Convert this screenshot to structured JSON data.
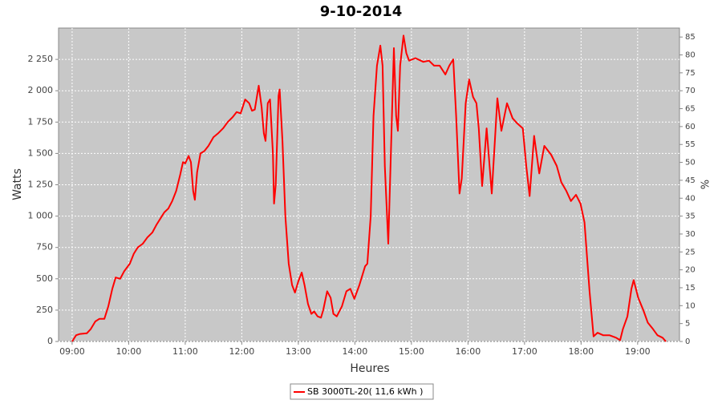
{
  "chart_data": {
    "type": "line",
    "title": "9-10-2014",
    "x_label": "Heures",
    "y_label": "Watts",
    "y2_label": "%",
    "xlim": [
      8.76,
      19.74
    ],
    "xticks": [
      {
        "value": 9,
        "label": "09:00"
      },
      {
        "value": 10,
        "label": "10:00"
      },
      {
        "value": 11,
        "label": "11:00"
      },
      {
        "value": 12,
        "label": "12:00"
      },
      {
        "value": 13,
        "label": "13:00"
      },
      {
        "value": 14,
        "label": "14:00"
      },
      {
        "value": 15,
        "label": "15:00"
      },
      {
        "value": 16,
        "label": "16:00"
      },
      {
        "value": 17,
        "label": "17:00"
      },
      {
        "value": 18,
        "label": "18:00"
      },
      {
        "value": 19,
        "label": "19:00"
      }
    ],
    "ylim": [
      0,
      2500
    ],
    "yticks": [
      0,
      250,
      500,
      750,
      {
        "value": 1000,
        "label": "1 000"
      },
      {
        "value": 1250,
        "label": "1 250"
      },
      {
        "value": 1500,
        "label": "1 500"
      },
      {
        "value": 1750,
        "label": "1 750"
      },
      {
        "value": 2000,
        "label": "2 000"
      },
      {
        "value": 2250,
        "label": "2 250"
      }
    ],
    "y2lim": [
      0,
      87.5
    ],
    "y2ticks": [
      0,
      5,
      10,
      15,
      20,
      25,
      30,
      35,
      40,
      45,
      50,
      55,
      60,
      65,
      70,
      75,
      80,
      85
    ],
    "grid": true,
    "legend": "bottom",
    "x": [
      9.0,
      9.07,
      9.14,
      9.26,
      9.33,
      9.41,
      9.48,
      9.57,
      9.64,
      9.71,
      9.77,
      9.85,
      9.92,
      10.02,
      10.09,
      10.16,
      10.25,
      10.33,
      10.42,
      10.49,
      10.56,
      10.63,
      10.7,
      10.77,
      10.84,
      10.91,
      10.96,
      11.0,
      11.06,
      11.1,
      11.14,
      11.17,
      11.21,
      11.27,
      11.34,
      11.41,
      11.5,
      11.58,
      11.67,
      11.75,
      11.84,
      11.91,
      11.98,
      12.06,
      12.13,
      12.18,
      12.23,
      12.3,
      12.35,
      12.39,
      12.42,
      12.46,
      12.5,
      12.55,
      12.57,
      12.6,
      12.65,
      12.67,
      12.72,
      12.77,
      12.83,
      12.89,
      12.94,
      13.0,
      13.06,
      13.11,
      13.17,
      13.23,
      13.28,
      13.34,
      13.4,
      13.44,
      13.51,
      13.57,
      13.62,
      13.68,
      13.77,
      13.85,
      13.92,
      13.99,
      14.08,
      14.18,
      14.22,
      14.28,
      14.33,
      14.39,
      14.45,
      14.49,
      14.53,
      14.59,
      14.63,
      14.69,
      14.73,
      14.76,
      14.8,
      14.86,
      14.91,
      14.96,
      15.07,
      15.21,
      15.31,
      15.4,
      15.5,
      15.6,
      15.67,
      15.74,
      15.79,
      15.85,
      15.89,
      15.96,
      16.02,
      16.09,
      16.15,
      16.19,
      16.25,
      16.33,
      16.42,
      16.52,
      16.59,
      16.69,
      16.79,
      16.87,
      16.97,
      17.03,
      17.09,
      17.17,
      17.26,
      17.35,
      17.47,
      17.57,
      17.65,
      17.74,
      17.82,
      17.91,
      17.99,
      18.06,
      18.15,
      18.22,
      18.29,
      18.39,
      18.5,
      18.62,
      18.69,
      18.74,
      18.82,
      18.89,
      18.93,
      19.01,
      19.1,
      19.18,
      19.27,
      19.35,
      19.44,
      19.5
    ],
    "series": [
      {
        "name": "SB 3000TL-20( 11,6 kWh )",
        "color": "#ff0000",
        "values": [
          0,
          50,
          60,
          65,
          100,
          160,
          180,
          180,
          280,
          420,
          510,
          500,
          560,
          620,
          700,
          750,
          780,
          830,
          870,
          930,
          980,
          1030,
          1060,
          1120,
          1200,
          1330,
          1430,
          1420,
          1480,
          1430,
          1200,
          1130,
          1350,
          1500,
          1520,
          1560,
          1630,
          1660,
          1700,
          1750,
          1790,
          1830,
          1820,
          1930,
          1900,
          1840,
          1850,
          2040,
          1870,
          1660,
          1600,
          1900,
          1930,
          1500,
          1100,
          1250,
          1960,
          2010,
          1600,
          1000,
          620,
          450,
          390,
          480,
          550,
          450,
          300,
          220,
          240,
          200,
          190,
          250,
          400,
          350,
          220,
          200,
          280,
          400,
          420,
          340,
          450,
          600,
          620,
          1000,
          1800,
          2200,
          2360,
          2200,
          1400,
          780,
          1400,
          2340,
          1800,
          1680,
          2200,
          2440,
          2300,
          2240,
          2260,
          2230,
          2240,
          2200,
          2200,
          2130,
          2200,
          2250,
          1800,
          1180,
          1300,
          1900,
          2090,
          1950,
          1900,
          1700,
          1240,
          1700,
          1180,
          1940,
          1680,
          1900,
          1780,
          1740,
          1700,
          1400,
          1160,
          1640,
          1340,
          1560,
          1490,
          1400,
          1270,
          1200,
          1120,
          1170,
          1100,
          950,
          400,
          40,
          70,
          50,
          50,
          30,
          10,
          100,
          200,
          420,
          490,
          350,
          250,
          150,
          100,
          50,
          30,
          0
        ]
      }
    ]
  }
}
